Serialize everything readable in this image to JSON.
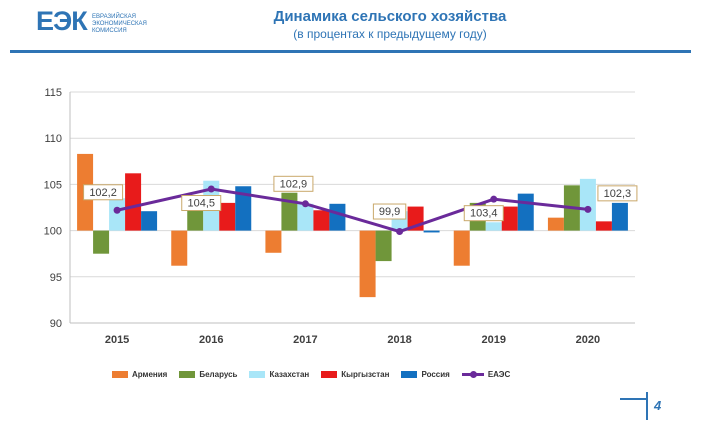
{
  "header": {
    "logo_mark": "ЕЭК",
    "logo_lines": [
      "ЕВРАЗИЙСКАЯ",
      "ЭКОНОМИЧЕСКАЯ",
      "КОМИССИЯ"
    ],
    "title": "Динамика сельского хозяйства",
    "subtitle": "(в процентах к предыдущему году)"
  },
  "page_number": "4",
  "colors": {
    "Армения": "#ed7d31",
    "Беларусь": "#70963a",
    "Казахстан": "#a9e6f8",
    "Кыргызстан": "#e81b1b",
    "Россия": "#1370c0",
    "ЕАЭС": "#6a2a9a",
    "brand": "#2e74b5"
  },
  "chart_data": {
    "type": "bar",
    "categories": [
      "2015",
      "2016",
      "2017",
      "2018",
      "2019",
      "2020"
    ],
    "ylim": [
      90,
      115
    ],
    "yticks": [
      90,
      95,
      100,
      105,
      110,
      115
    ],
    "baseline": 100,
    "grid": true,
    "legend_position": "bottom",
    "series": [
      {
        "name": "Армения",
        "values": [
          108.3,
          96.2,
          97.6,
          92.8,
          96.2,
          101.4
        ]
      },
      {
        "name": "Беларусь",
        "values": [
          97.5,
          103.3,
          104.1,
          96.7,
          103.0,
          104.9
        ]
      },
      {
        "name": "Казахстан",
        "values": [
          103.5,
          105.4,
          102.9,
          102.1,
          100.9,
          105.6
        ]
      },
      {
        "name": "Кыргызстан",
        "values": [
          106.2,
          103.0,
          102.2,
          102.6,
          102.6,
          101.0
        ]
      },
      {
        "name": "Россия",
        "values": [
          102.1,
          104.8,
          102.9,
          99.8,
          104.0,
          103.0
        ]
      }
    ],
    "line_series": {
      "name": "ЕАЭС",
      "values": [
        102.2,
        104.5,
        102.9,
        99.9,
        103.4,
        102.3
      ],
      "labels": [
        "102,2",
        "104,5",
        "102,9",
        "99,9",
        "103,4",
        "102,3"
      ]
    }
  }
}
